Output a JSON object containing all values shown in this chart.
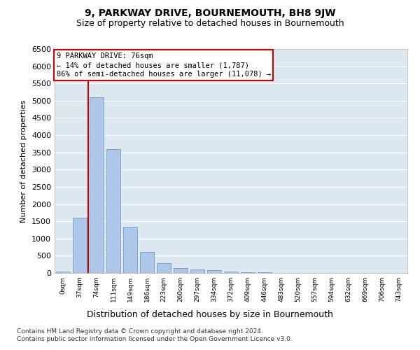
{
  "title": "9, PARKWAY DRIVE, BOURNEMOUTH, BH8 9JW",
  "subtitle": "Size of property relative to detached houses in Bournemouth",
  "xlabel": "Distribution of detached houses by size in Bournemouth",
  "ylabel": "Number of detached properties",
  "footer_line1": "Contains HM Land Registry data © Crown copyright and database right 2024.",
  "footer_line2": "Contains public sector information licensed under the Open Government Licence v3.0.",
  "bin_labels": [
    "0sqm",
    "37sqm",
    "74sqm",
    "111sqm",
    "149sqm",
    "186sqm",
    "223sqm",
    "260sqm",
    "297sqm",
    "334sqm",
    "372sqm",
    "409sqm",
    "446sqm",
    "483sqm",
    "520sqm",
    "557sqm",
    "594sqm",
    "632sqm",
    "669sqm",
    "706sqm",
    "743sqm"
  ],
  "bar_values": [
    50,
    1600,
    5100,
    3600,
    1350,
    600,
    280,
    140,
    110,
    80,
    50,
    30,
    15,
    8,
    4,
    2,
    1,
    1,
    0,
    0,
    0
  ],
  "bar_color": "#aec6e8",
  "bar_edge_color": "#5a8fc0",
  "property_line_bin": 1.5,
  "ylim": [
    0,
    6500
  ],
  "yticks": [
    0,
    500,
    1000,
    1500,
    2000,
    2500,
    3000,
    3500,
    4000,
    4500,
    5000,
    5500,
    6000,
    6500
  ],
  "annotation_text": "9 PARKWAY DRIVE: 76sqm\n← 14% of detached houses are smaller (1,787)\n86% of semi-detached houses are larger (11,078) →",
  "annotation_box_color": "#ffffff",
  "annotation_box_edge": "#cc0000",
  "property_line_color": "#cc0000",
  "plot_bg_color": "#dde8f0",
  "grid_color": "#ffffff",
  "title_fontsize": 10,
  "subtitle_fontsize": 9,
  "ylabel_fontsize": 8,
  "xlabel_fontsize": 9,
  "ytick_fontsize": 8,
  "xtick_fontsize": 6.5,
  "annot_fontsize": 7.5,
  "footer_fontsize": 6.5
}
